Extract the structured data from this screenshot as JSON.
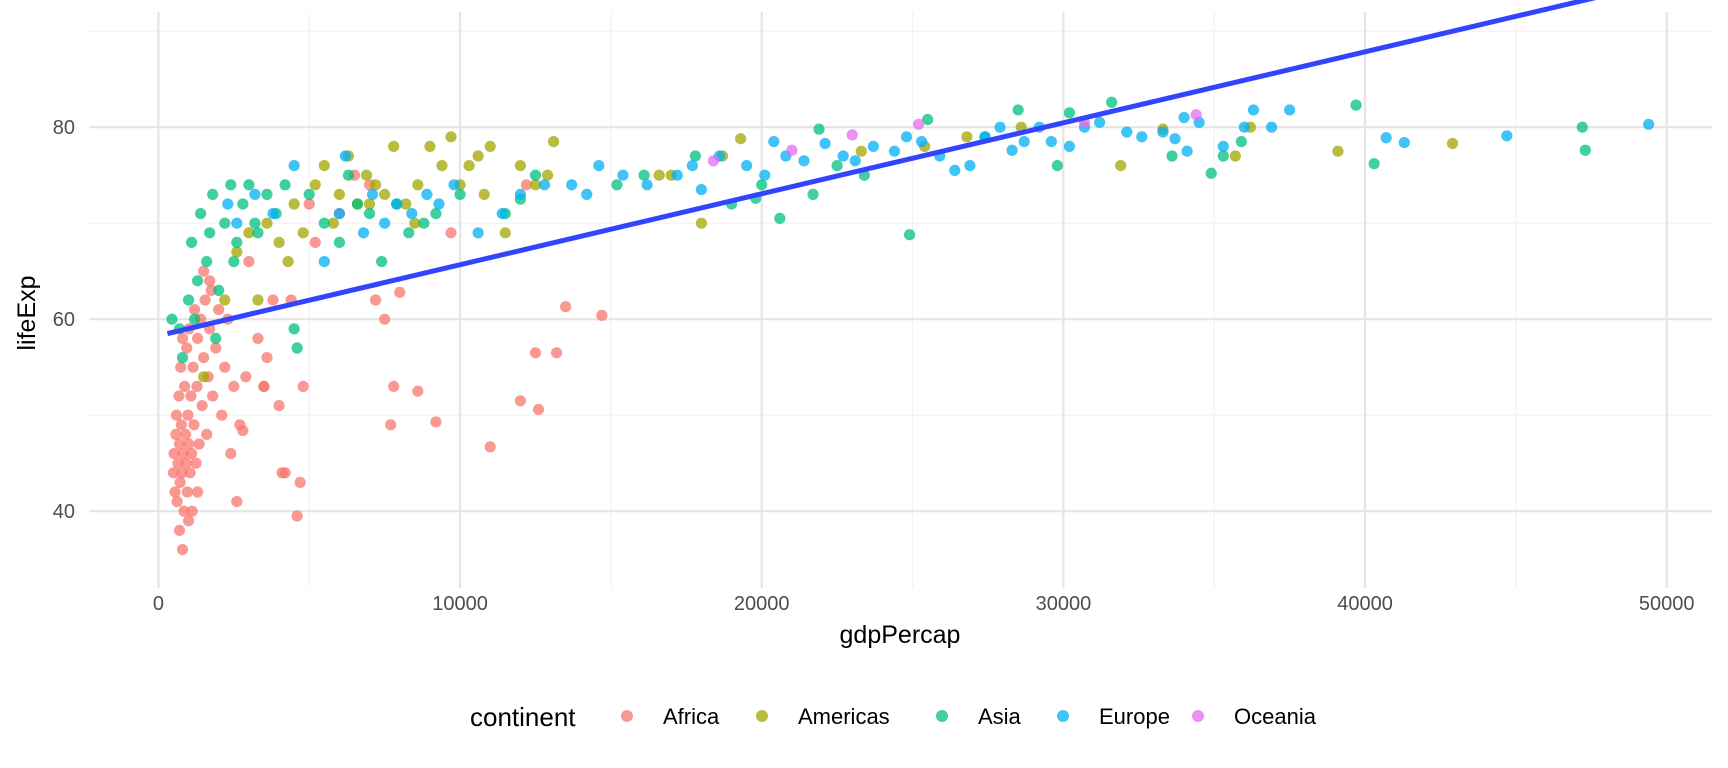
{
  "chart_data": {
    "type": "scatter",
    "title": "",
    "xlabel": "gdpPercap",
    "ylabel": "lifeExp",
    "xlim": [
      -2300,
      51500
    ],
    "ylim": [
      32,
      92
    ],
    "x_ticks": [
      0,
      10000,
      20000,
      30000,
      40000,
      50000
    ],
    "x_tick_labels": [
      "0",
      "10000",
      "20000",
      "30000",
      "40000",
      "50000"
    ],
    "y_ticks": [
      40,
      60,
      80
    ],
    "y_tick_labels": [
      "40",
      "60",
      "80"
    ],
    "grid": true,
    "legend": {
      "title": "continent",
      "position": "bottom",
      "entries": [
        "Africa",
        "Americas",
        "Asia",
        "Europe",
        "Oceania"
      ]
    },
    "colors": {
      "Africa": "#F8766D",
      "Americas": "#A3A500",
      "Asia": "#00BF7D",
      "Europe": "#00B0F6",
      "Oceania": "#E76BF3",
      "trend": "#3344FF",
      "grid_major": "#e5e5e5",
      "grid_minor": "#f2f2f2"
    },
    "trend_line": {
      "x": [
        300,
        49400
      ],
      "y": [
        58.5,
        94.8
      ]
    },
    "series": [
      {
        "name": "Africa",
        "points": [
          [
            500,
            44
          ],
          [
            520,
            46
          ],
          [
            550,
            42
          ],
          [
            580,
            48
          ],
          [
            600,
            50
          ],
          [
            620,
            41
          ],
          [
            650,
            45
          ],
          [
            680,
            52
          ],
          [
            700,
            47
          ],
          [
            720,
            43
          ],
          [
            740,
            55
          ],
          [
            760,
            49
          ],
          [
            780,
            44
          ],
          [
            800,
            58
          ],
          [
            820,
            46
          ],
          [
            850,
            40
          ],
          [
            870,
            53
          ],
          [
            900,
            48
          ],
          [
            920,
            45
          ],
          [
            940,
            57
          ],
          [
            960,
            42
          ],
          [
            980,
            50
          ],
          [
            1000,
            47
          ],
          [
            1020,
            59
          ],
          [
            1050,
            44
          ],
          [
            1080,
            52
          ],
          [
            1100,
            46
          ],
          [
            1120,
            40
          ],
          [
            1150,
            55
          ],
          [
            1180,
            49
          ],
          [
            1200,
            61
          ],
          [
            1250,
            45
          ],
          [
            1280,
            53
          ],
          [
            1300,
            58
          ],
          [
            1350,
            47
          ],
          [
            1400,
            60
          ],
          [
            1450,
            51
          ],
          [
            1500,
            56
          ],
          [
            1550,
            62
          ],
          [
            1600,
            48
          ],
          [
            1650,
            54
          ],
          [
            1700,
            59
          ],
          [
            1750,
            63
          ],
          [
            1800,
            52
          ],
          [
            1900,
            57
          ],
          [
            2000,
            61
          ],
          [
            2100,
            50
          ],
          [
            2200,
            55
          ],
          [
            2300,
            60
          ],
          [
            2400,
            46
          ],
          [
            2500,
            53
          ],
          [
            700,
            38
          ],
          [
            800,
            36
          ],
          [
            1000,
            39
          ],
          [
            1300,
            42
          ],
          [
            1500,
            65
          ],
          [
            1700,
            64
          ],
          [
            2600,
            41
          ],
          [
            2700,
            49
          ],
          [
            2900,
            54
          ],
          [
            3000,
            66
          ],
          [
            3300,
            58
          ],
          [
            3500,
            53
          ],
          [
            3600,
            56
          ],
          [
            3800,
            62
          ],
          [
            4000,
            51
          ],
          [
            4200,
            44
          ],
          [
            4400,
            62
          ],
          [
            4600,
            39.5
          ],
          [
            4800,
            53
          ],
          [
            5000,
            72
          ],
          [
            5200,
            68
          ],
          [
            6000,
            71
          ],
          [
            6500,
            75
          ],
          [
            7000,
            74
          ],
          [
            7200,
            62
          ],
          [
            7500,
            60
          ],
          [
            7700,
            49
          ],
          [
            7800,
            53
          ],
          [
            8000,
            62.8
          ],
          [
            8600,
            52.5
          ],
          [
            9200,
            49.3
          ],
          [
            9700,
            69
          ],
          [
            11000,
            46.7
          ],
          [
            12000,
            51.5
          ],
          [
            12500,
            56.5
          ],
          [
            12600,
            50.6
          ],
          [
            13200,
            56.5
          ],
          [
            13500,
            61.3
          ],
          [
            14700,
            60.4
          ],
          [
            3500,
            53
          ],
          [
            2800,
            48.4
          ],
          [
            4700,
            43
          ],
          [
            4100,
            44
          ],
          [
            12200,
            74
          ]
        ]
      },
      {
        "name": "Americas",
        "points": [
          [
            1500,
            54
          ],
          [
            2200,
            62
          ],
          [
            2600,
            67
          ],
          [
            3000,
            69
          ],
          [
            3300,
            62
          ],
          [
            3600,
            70
          ],
          [
            4000,
            68
          ],
          [
            4500,
            72
          ],
          [
            4800,
            69
          ],
          [
            5200,
            74
          ],
          [
            5500,
            76
          ],
          [
            5800,
            70
          ],
          [
            6000,
            73
          ],
          [
            6300,
            77
          ],
          [
            6600,
            72
          ],
          [
            6900,
            75
          ],
          [
            7200,
            74
          ],
          [
            7500,
            73
          ],
          [
            7800,
            78
          ],
          [
            8200,
            72
          ],
          [
            8600,
            74
          ],
          [
            9000,
            78
          ],
          [
            9400,
            76
          ],
          [
            9700,
            79
          ],
          [
            10000,
            74
          ],
          [
            10300,
            76
          ],
          [
            10600,
            77
          ],
          [
            11000,
            78
          ],
          [
            11500,
            69
          ],
          [
            12000,
            76
          ],
          [
            12500,
            74
          ],
          [
            13100,
            78.5
          ],
          [
            17000,
            75
          ],
          [
            18000,
            70
          ],
          [
            18700,
            77
          ],
          [
            19300,
            78.8
          ],
          [
            23300,
            77.5
          ],
          [
            25400,
            78
          ],
          [
            26800,
            79
          ],
          [
            28600,
            80
          ],
          [
            31900,
            76
          ],
          [
            33300,
            79.8
          ],
          [
            35700,
            77
          ],
          [
            36200,
            80
          ],
          [
            39100,
            77.5
          ],
          [
            42900,
            78.3
          ],
          [
            4300,
            66
          ],
          [
            7000,
            72
          ],
          [
            8500,
            70
          ],
          [
            10800,
            73
          ],
          [
            12900,
            75
          ],
          [
            16600,
            75
          ]
        ]
      },
      {
        "name": "Asia",
        "points": [
          [
            450,
            60
          ],
          [
            700,
            59
          ],
          [
            800,
            56
          ],
          [
            1000,
            62
          ],
          [
            1100,
            68
          ],
          [
            1200,
            60
          ],
          [
            1300,
            64
          ],
          [
            1400,
            71
          ],
          [
            1600,
            66
          ],
          [
            1700,
            69
          ],
          [
            1800,
            73
          ],
          [
            2000,
            63
          ],
          [
            2200,
            70
          ],
          [
            2400,
            74
          ],
          [
            2600,
            68
          ],
          [
            2800,
            72
          ],
          [
            3000,
            74
          ],
          [
            3300,
            69
          ],
          [
            3600,
            73
          ],
          [
            3900,
            71
          ],
          [
            4200,
            74
          ],
          [
            4500,
            59
          ],
          [
            4600,
            57
          ],
          [
            5000,
            73
          ],
          [
            5500,
            70
          ],
          [
            6000,
            68
          ],
          [
            6300,
            75
          ],
          [
            6600,
            72
          ],
          [
            7000,
            71
          ],
          [
            7400,
            66
          ],
          [
            7900,
            72
          ],
          [
            8300,
            69
          ],
          [
            8800,
            70
          ],
          [
            9200,
            71
          ],
          [
            10000,
            73
          ],
          [
            11500,
            71
          ],
          [
            12000,
            72.5
          ],
          [
            12500,
            75
          ],
          [
            15200,
            74
          ],
          [
            16100,
            75
          ],
          [
            17800,
            77
          ],
          [
            19000,
            72
          ],
          [
            19800,
            72.6
          ],
          [
            20000,
            74
          ],
          [
            20600,
            70.5
          ],
          [
            21700,
            73
          ],
          [
            21900,
            79.8
          ],
          [
            22500,
            76
          ],
          [
            23400,
            75
          ],
          [
            24900,
            68.8
          ],
          [
            25500,
            80.8
          ],
          [
            27400,
            79
          ],
          [
            28500,
            81.8
          ],
          [
            29800,
            76
          ],
          [
            30200,
            81.5
          ],
          [
            31600,
            82.6
          ],
          [
            33600,
            77
          ],
          [
            34900,
            75.2
          ],
          [
            35300,
            77
          ],
          [
            35900,
            78.5
          ],
          [
            39700,
            82.3
          ],
          [
            40300,
            76.2
          ],
          [
            47200,
            80
          ],
          [
            47300,
            77.6
          ],
          [
            1900,
            58
          ],
          [
            2500,
            66
          ],
          [
            3200,
            70
          ]
        ]
      },
      {
        "name": "Europe",
        "points": [
          [
            2300,
            72
          ],
          [
            2600,
            70
          ],
          [
            3200,
            73
          ],
          [
            3800,
            71
          ],
          [
            4500,
            76
          ],
          [
            5500,
            66
          ],
          [
            6000,
            71
          ],
          [
            6200,
            77
          ],
          [
            6800,
            69
          ],
          [
            7100,
            73
          ],
          [
            7500,
            70
          ],
          [
            7900,
            72
          ],
          [
            8400,
            71
          ],
          [
            8900,
            73
          ],
          [
            9300,
            72
          ],
          [
            9800,
            74
          ],
          [
            10600,
            69
          ],
          [
            11400,
            71
          ],
          [
            12000,
            73
          ],
          [
            12800,
            74
          ],
          [
            13700,
            74
          ],
          [
            14200,
            73
          ],
          [
            14600,
            76
          ],
          [
            15400,
            75
          ],
          [
            16200,
            74
          ],
          [
            17200,
            75
          ],
          [
            17700,
            76
          ],
          [
            18000,
            73.5
          ],
          [
            18600,
            77
          ],
          [
            19500,
            76
          ],
          [
            20100,
            75
          ],
          [
            20400,
            78.5
          ],
          [
            20800,
            77
          ],
          [
            21400,
            76.5
          ],
          [
            22100,
            78.3
          ],
          [
            22700,
            77
          ],
          [
            23100,
            76.5
          ],
          [
            23700,
            78
          ],
          [
            24400,
            77.5
          ],
          [
            24800,
            79
          ],
          [
            25300,
            78.5
          ],
          [
            25900,
            77
          ],
          [
            26400,
            75.5
          ],
          [
            26900,
            76
          ],
          [
            27400,
            79
          ],
          [
            27900,
            80
          ],
          [
            28300,
            77.6
          ],
          [
            28700,
            78.5
          ],
          [
            29200,
            80
          ],
          [
            29600,
            78.5
          ],
          [
            30200,
            78
          ],
          [
            30700,
            80
          ],
          [
            31200,
            80.5
          ],
          [
            32100,
            79.5
          ],
          [
            32600,
            79
          ],
          [
            33300,
            79.5
          ],
          [
            33700,
            78.8
          ],
          [
            34100,
            77.5
          ],
          [
            34500,
            80.5
          ],
          [
            35300,
            78
          ],
          [
            36000,
            80
          ],
          [
            36300,
            81.8
          ],
          [
            36900,
            80
          ],
          [
            37500,
            81.8
          ],
          [
            40700,
            78.9
          ],
          [
            41300,
            78.4
          ],
          [
            44700,
            79.1
          ],
          [
            49400,
            80.3
          ],
          [
            34000,
            81
          ]
        ]
      },
      {
        "name": "Oceania",
        "points": [
          [
            18400,
            76.5
          ],
          [
            21000,
            77.6
          ],
          [
            23000,
            79.2
          ],
          [
            25200,
            80.3
          ],
          [
            30700,
            80.5
          ],
          [
            34400,
            81.3
          ]
        ]
      }
    ]
  }
}
